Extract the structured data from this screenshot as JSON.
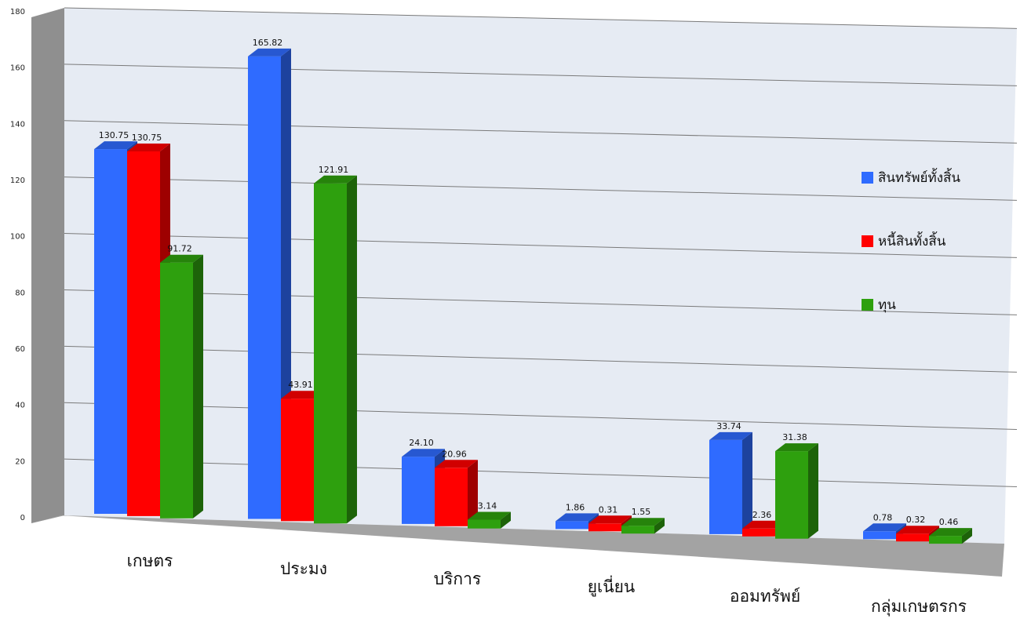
{
  "chart_data": {
    "type": "bar",
    "categories": [
      "เกษตร",
      "ประมง",
      "บริการ",
      "ยูเนี่ยน",
      "ออมทรัพย์",
      "กลุ่มเกษตรกร"
    ],
    "series": [
      {
        "name": "สินทรัพย์ทั้งสิ้น",
        "values": [
          130.75,
          165.82,
          24.1,
          1.86,
          33.74,
          0.78
        ],
        "labels": [
          "130.75",
          "165.82",
          "24.10",
          "1.86",
          "33.74",
          "0.78"
        ]
      },
      {
        "name": "หนี้สินทั้งสิ้น",
        "values": [
          130.75,
          43.91,
          20.96,
          0.31,
          2.36,
          0.32
        ],
        "labels": [
          "130.75",
          "43.91",
          "20.96",
          "0.31",
          "2.36",
          "0.32"
        ]
      },
      {
        "name": "ทุน",
        "values": [
          91.72,
          121.91,
          3.14,
          1.55,
          31.38,
          0.46
        ],
        "labels": [
          "91.72",
          "121.91",
          "3.14",
          "1.55",
          "31.38",
          "0.46"
        ]
      }
    ],
    "ylim": [
      0,
      180
    ],
    "yticks": [
      0,
      20,
      40,
      60,
      80,
      100,
      120,
      140,
      160,
      180
    ],
    "grid": true,
    "legend_position": "right",
    "style": "3d-clustered-column",
    "colors": [
      "#2f6bff",
      "#ff0000",
      "#2ea00e"
    ]
  }
}
